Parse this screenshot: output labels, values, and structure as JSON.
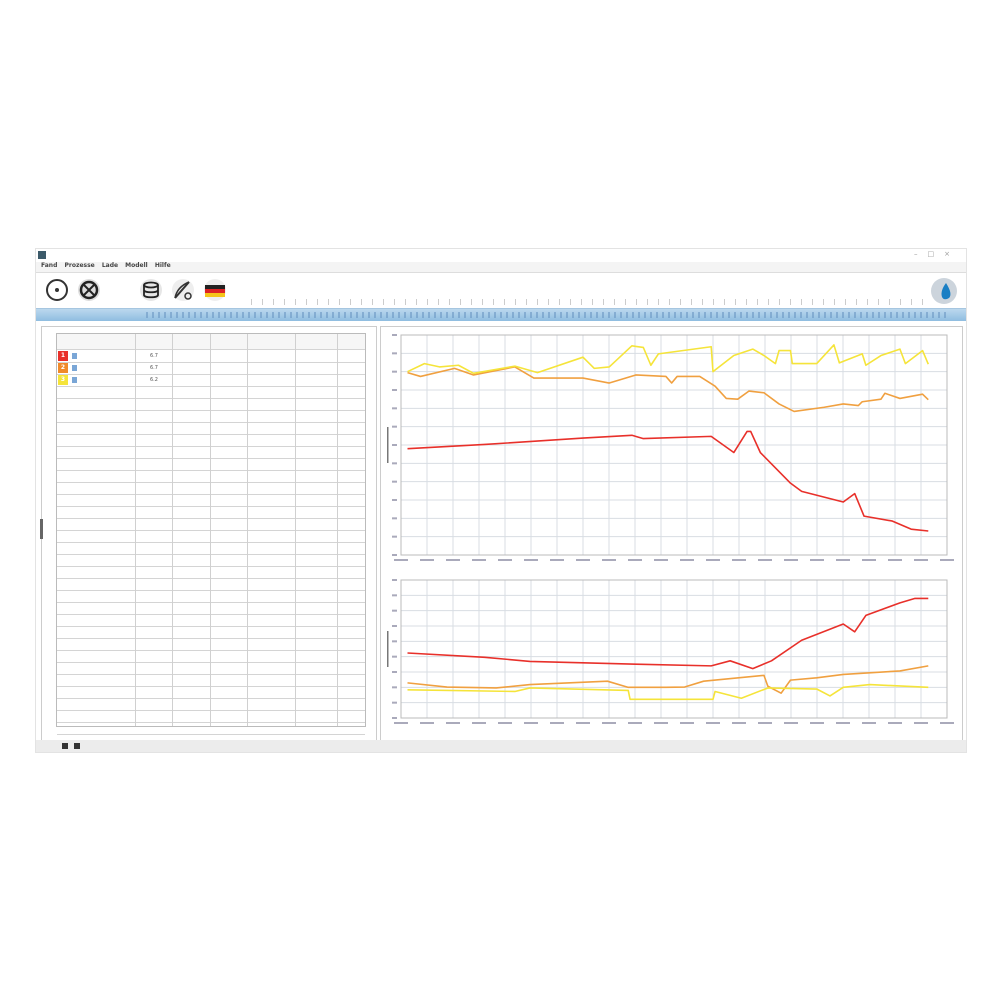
{
  "window": {
    "title": "",
    "controls": [
      "–",
      "□",
      "×"
    ]
  },
  "menu": [
    "Fand",
    "Prozesse",
    "Lade",
    "Modell",
    "Hilfe"
  ],
  "toolbar": {
    "buttons": [
      {
        "icon": "record-icon"
      },
      {
        "icon": "fan-icon"
      },
      {
        "icon": "database-icon"
      },
      {
        "icon": "gauge-icon"
      },
      {
        "icon": "flag-de-icon"
      }
    ]
  },
  "colors": {
    "series1": "#e8302a",
    "series2": "#f0a040",
    "series3": "#f5e43a",
    "accent": "#8fbde0"
  },
  "table": {
    "columns": [
      "",
      "",
      "",
      "",
      "",
      "",
      ""
    ],
    "rows": [
      {
        "marker": "1",
        "marker_color": "#e8302a",
        "value": "6.7"
      },
      {
        "marker": "2",
        "marker_color": "#f08a2a",
        "value": "6.7"
      },
      {
        "marker": "3",
        "marker_color": "#f5e43a",
        "value": "6.2"
      }
    ],
    "empty_rows": 30
  },
  "status": {
    "text": ""
  },
  "chart_data": [
    {
      "type": "line",
      "title": "",
      "xlabel": "",
      "ylabel": "",
      "xlim": [
        0,
        21
      ],
      "ylim": [
        0,
        12
      ],
      "grid": true,
      "series": [
        {
          "color": "#e8302a",
          "points": [
            [
              0.25,
              5.8
            ],
            [
              3.22,
              6.03
            ],
            [
              7.0,
              6.38
            ],
            [
              8.88,
              6.53
            ],
            [
              9.32,
              6.35
            ],
            [
              11.93,
              6.47
            ],
            [
              12.8,
              5.59
            ],
            [
              13.31,
              6.74
            ],
            [
              13.45,
              6.74
            ],
            [
              13.82,
              5.59
            ],
            [
              14.98,
              3.92
            ],
            [
              15.41,
              3.47
            ],
            [
              17.01,
              2.89
            ],
            [
              17.45,
              3.35
            ],
            [
              17.81,
              2.12
            ],
            [
              18.9,
              1.85
            ],
            [
              19.62,
              1.41
            ],
            [
              20.28,
              1.31
            ]
          ]
        },
        {
          "color": "#f0a040",
          "points": [
            [
              0.25,
              9.95
            ],
            [
              0.75,
              9.74
            ],
            [
              2.06,
              10.18
            ],
            [
              2.79,
              9.82
            ],
            [
              4.38,
              10.26
            ],
            [
              5.11,
              9.65
            ],
            [
              5.83,
              9.65
            ],
            [
              7.0,
              9.65
            ],
            [
              8.01,
              9.38
            ],
            [
              9.03,
              9.82
            ],
            [
              10.19,
              9.74
            ],
            [
              10.41,
              9.38
            ],
            [
              10.62,
              9.74
            ],
            [
              11.49,
              9.74
            ],
            [
              12.08,
              9.21
            ],
            [
              12.51,
              8.54
            ],
            [
              12.95,
              8.5
            ],
            [
              13.38,
              8.94
            ],
            [
              13.96,
              8.85
            ],
            [
              14.54,
              8.24
            ],
            [
              15.12,
              7.83
            ],
            [
              16.28,
              8.06
            ],
            [
              17.01,
              8.24
            ],
            [
              17.59,
              8.15
            ],
            [
              17.74,
              8.36
            ],
            [
              18.46,
              8.5
            ],
            [
              18.61,
              8.82
            ],
            [
              19.19,
              8.54
            ],
            [
              20.06,
              8.77
            ],
            [
              20.28,
              8.47
            ]
          ]
        },
        {
          "color": "#f5e43a",
          "points": [
            [
              0.25,
              10.0
            ],
            [
              0.9,
              10.44
            ],
            [
              1.48,
              10.26
            ],
            [
              2.21,
              10.35
            ],
            [
              2.79,
              9.91
            ],
            [
              4.38,
              10.3
            ],
            [
              5.25,
              9.95
            ],
            [
              7.0,
              10.79
            ],
            [
              7.43,
              10.18
            ],
            [
              8.01,
              10.26
            ],
            [
              8.88,
              11.41
            ],
            [
              9.32,
              11.32
            ],
            [
              9.61,
              10.35
            ],
            [
              9.9,
              10.97
            ],
            [
              11.93,
              11.36
            ],
            [
              12.0,
              10.0
            ],
            [
              12.8,
              10.88
            ],
            [
              13.53,
              11.23
            ],
            [
              13.96,
              10.88
            ],
            [
              14.4,
              10.44
            ],
            [
              14.54,
              11.15
            ],
            [
              14.98,
              11.15
            ],
            [
              15.05,
              10.44
            ],
            [
              15.99,
              10.44
            ],
            [
              16.65,
              11.46
            ],
            [
              16.86,
              10.48
            ],
            [
              17.74,
              10.97
            ],
            [
              17.88,
              10.35
            ],
            [
              18.46,
              10.88
            ],
            [
              19.19,
              11.23
            ],
            [
              19.4,
              10.44
            ],
            [
              20.06,
              11.15
            ],
            [
              20.28,
              10.41
            ]
          ]
        }
      ]
    },
    {
      "type": "line",
      "title": "",
      "xlabel": "",
      "ylabel": "",
      "xlim": [
        0,
        21
      ],
      "ylim": [
        0,
        9
      ],
      "grid": true,
      "series": [
        {
          "color": "#e8302a",
          "points": [
            [
              0.25,
              4.24
            ],
            [
              3.22,
              3.96
            ],
            [
              4.96,
              3.69
            ],
            [
              9.03,
              3.51
            ],
            [
              11.93,
              3.4
            ],
            [
              12.66,
              3.73
            ],
            [
              13.53,
              3.22
            ],
            [
              14.25,
              3.73
            ],
            [
              15.41,
              5.07
            ],
            [
              17.01,
              6.13
            ],
            [
              17.45,
              5.62
            ],
            [
              17.88,
              6.69
            ],
            [
              19.19,
              7.51
            ],
            [
              19.77,
              7.8
            ],
            [
              20.28,
              7.8
            ]
          ]
        },
        {
          "color": "#f0a040",
          "points": [
            [
              0.25,
              2.29
            ],
            [
              1.77,
              2.02
            ],
            [
              3.66,
              1.96
            ],
            [
              4.96,
              2.18
            ],
            [
              7.94,
              2.4
            ],
            [
              8.74,
              2.0
            ],
            [
              10.19,
              2.0
            ],
            [
              10.91,
              2.02
            ],
            [
              11.64,
              2.4
            ],
            [
              13.96,
              2.78
            ],
            [
              14.11,
              2.07
            ],
            [
              14.62,
              1.62
            ],
            [
              14.98,
              2.47
            ],
            [
              15.99,
              2.62
            ],
            [
              17.01,
              2.84
            ],
            [
              19.19,
              3.07
            ],
            [
              20.28,
              3.4
            ]
          ]
        },
        {
          "color": "#f5e43a",
          "points": [
            [
              0.25,
              1.84
            ],
            [
              4.38,
              1.73
            ],
            [
              4.96,
              1.96
            ],
            [
              8.74,
              1.8
            ],
            [
              8.81,
              1.22
            ],
            [
              12.0,
              1.22
            ],
            [
              12.08,
              1.73
            ],
            [
              13.09,
              1.29
            ],
            [
              14.11,
              1.96
            ],
            [
              15.99,
              1.89
            ],
            [
              16.5,
              1.44
            ],
            [
              17.01,
              2.0
            ],
            [
              18.03,
              2.18
            ],
            [
              20.28,
              2.0
            ]
          ]
        }
      ]
    }
  ]
}
